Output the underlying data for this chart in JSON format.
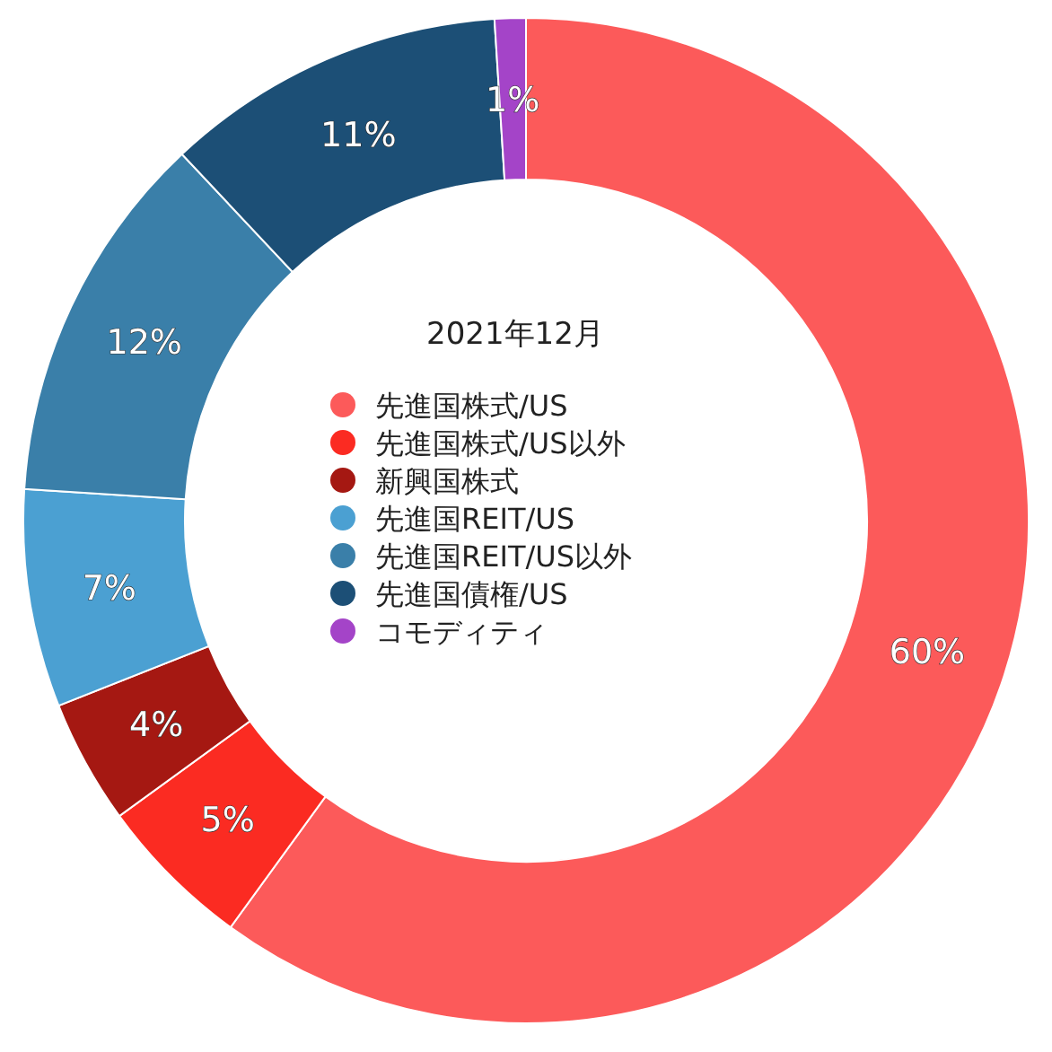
{
  "chart_data": {
    "type": "donut",
    "title": "2021年12月",
    "categories": [
      "先進国株式/US",
      "先進国株式/US以外",
      "新興国株式",
      "先進国REIT/US",
      "先進国REIT/US以外",
      "先進国債権/US",
      "コモディティ"
    ],
    "values": [
      60,
      5,
      4,
      7,
      12,
      11,
      1
    ],
    "colors": [
      "#fc5a5a",
      "#fb2b22",
      "#a51812",
      "#4ba0d2",
      "#3a7fa9",
      "#1c4f76",
      "#a444c8"
    ],
    "value_labels": [
      "60%",
      "5%",
      "4%",
      "7%",
      "12%",
      "11%",
      "1%"
    ],
    "legend": "center"
  }
}
